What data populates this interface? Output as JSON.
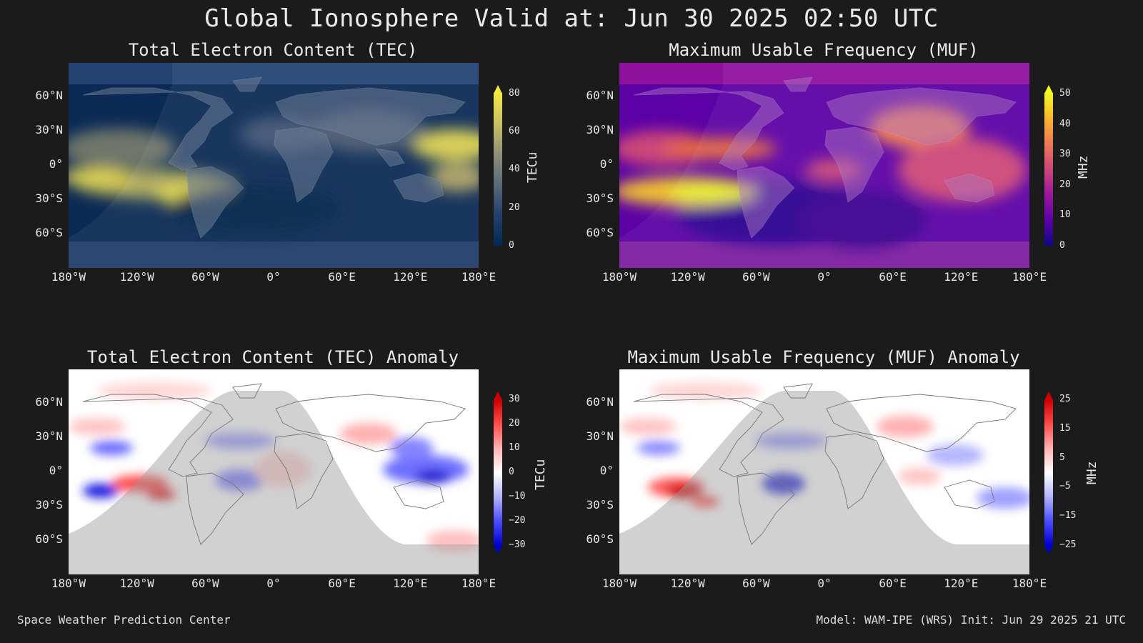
{
  "title": "Global Ionosphere Valid at: Jun 30 2025 02:50 UTC",
  "footer": {
    "left": "Space Weather Prediction Center",
    "right": "Model: WAM-IPE (WRS) Init: Jun 29 2025 21 UTC"
  },
  "axes": {
    "lat_labels": [
      "60°N",
      "30°N",
      "0°",
      "30°S",
      "60°S"
    ],
    "lon_labels": [
      "180°W",
      "120°W",
      "60°W",
      "0°",
      "60°E",
      "120°E",
      "180°E"
    ]
  },
  "panels": [
    {
      "id": "tec",
      "title": "Total Electron Content (TEC)",
      "colorbar_label": "TECu",
      "colorbar_ticks": [
        "0",
        "20",
        "40",
        "60",
        "80"
      ],
      "colorbar_colors": [
        "#002a57",
        "#23406a",
        "#5a6a7c",
        "#8f8f76",
        "#c9c063",
        "#f5ea3c"
      ]
    },
    {
      "id": "muf",
      "title": "Maximum Usable Frequency (MUF)",
      "colorbar_label": "MHz",
      "colorbar_ticks": [
        "0",
        "10",
        "20",
        "30",
        "40",
        "50"
      ],
      "colorbar_colors": [
        "#0d0887",
        "#5c01a6",
        "#9c179e",
        "#cc4778",
        "#ed7953",
        "#fdb42f",
        "#f0f921"
      ]
    },
    {
      "id": "tec-anomaly",
      "title": "Total Electron Content (TEC) Anomaly",
      "colorbar_label": "TECu",
      "colorbar_ticks": [
        "30",
        "20",
        "10",
        "0",
        "−10",
        "−20",
        "−30"
      ],
      "colorbar_colors": [
        "#cc0000",
        "#ff4d4d",
        "#ffb3b3",
        "#ffffff",
        "#b3b3ff",
        "#4d4dff",
        "#0000cc"
      ]
    },
    {
      "id": "muf-anomaly",
      "title": "Maximum Usable Frequency (MUF) Anomaly",
      "colorbar_label": "MHz",
      "colorbar_ticks": [
        "25",
        "15",
        "5",
        "−5",
        "−15",
        "−25"
      ],
      "colorbar_colors": [
        "#cc0000",
        "#ff4d4d",
        "#ffb3b3",
        "#ffffff",
        "#b3b3ff",
        "#4d4dff",
        "#0000cc"
      ]
    }
  ]
}
